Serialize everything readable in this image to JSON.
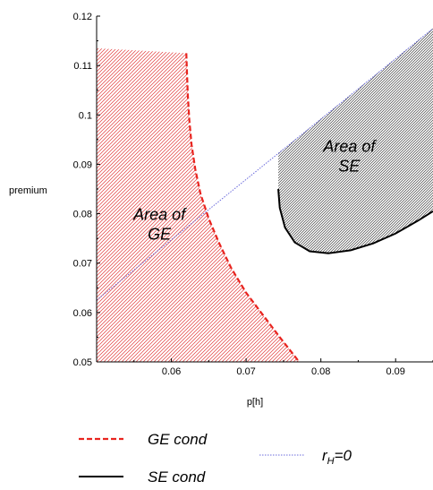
{
  "chart_data": {
    "type": "line",
    "xlabel": "p[h]",
    "ylabel": "premium",
    "xlim": [
      0.05,
      0.095
    ],
    "ylim": [
      0.05,
      0.12
    ],
    "x_ticks": [
      "0.06",
      "0.07",
      "0.08",
      "0.09"
    ],
    "x_tick_values": [
      0.06,
      0.07,
      0.08,
      0.09
    ],
    "y_ticks": [
      "0.05",
      "0.06",
      "0.07",
      "0.08",
      "0.09",
      "0.1",
      "0.11",
      "0.12"
    ],
    "y_tick_values": [
      0.05,
      0.06,
      0.07,
      0.08,
      0.09,
      0.1,
      0.11,
      0.12
    ],
    "grid": false,
    "legend_position": "bottom",
    "colors": {
      "ge": "#e8241f",
      "se": "#000000",
      "rh": "#6b6bdc",
      "ge_area": "#e23a3a",
      "se_area": "#444444"
    },
    "series": [
      {
        "name": "GE cond",
        "style": "dashed",
        "x": [
          0.062,
          0.0621,
          0.0622,
          0.0624,
          0.0627,
          0.0632,
          0.0639,
          0.065,
          0.0664,
          0.068,
          0.07,
          0.072,
          0.0745,
          0.0771
        ],
        "y": [
          0.1125,
          0.108,
          0.104,
          0.099,
          0.094,
          0.089,
          0.084,
          0.079,
          0.074,
          0.069,
          0.064,
          0.06,
          0.055,
          0.05
        ]
      },
      {
        "name": "SE cond",
        "style": "solid",
        "x": [
          0.0743,
          0.0745,
          0.0752,
          0.0765,
          0.0785,
          0.081,
          0.084,
          0.087,
          0.09,
          0.093,
          0.095
        ],
        "y": [
          0.085,
          0.0812,
          0.0772,
          0.0742,
          0.0724,
          0.072,
          0.0726,
          0.074,
          0.076,
          0.0786,
          0.0805
        ]
      },
      {
        "name": "r_H=0",
        "style": "dotted",
        "x": [
          0.05,
          0.095
        ],
        "y": [
          0.0625,
          0.1175
        ]
      }
    ],
    "annotations": [
      {
        "line1": "Area of",
        "line2": "GE",
        "x": 0.0584,
        "y": 0.0787
      },
      {
        "line1": "Area of",
        "line2": "SE",
        "x": 0.0838,
        "y": 0.0925
      }
    ],
    "legend": [
      {
        "series": "GE cond",
        "label": "GE cond"
      },
      {
        "series": "SE cond",
        "label": "SE cond"
      },
      {
        "series": "r_H=0",
        "label_main": "r",
        "label_sub": "H",
        "label_tail": "=0"
      }
    ]
  }
}
